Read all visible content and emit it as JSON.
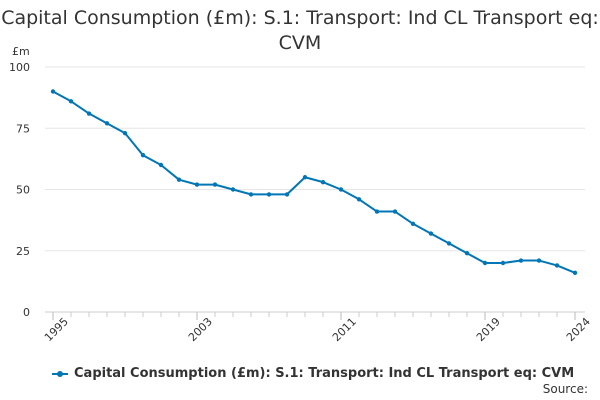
{
  "chart_data": {
    "type": "line",
    "title": "Capital Consumption (£m): S.1: Transport: Ind CL Transport eq: CVM",
    "ylabel": "£m",
    "xlabel": "",
    "ylim": [
      0,
      100
    ],
    "yticks": [
      0,
      25,
      50,
      75,
      100
    ],
    "xlim": [
      1995,
      2024
    ],
    "xticks": [
      1995,
      2003,
      2011,
      2019,
      2024
    ],
    "grid": true,
    "legend_position": "bottom",
    "series": [
      {
        "name": "Capital Consumption (£m): S.1: Transport: Ind CL Transport eq: CVM",
        "color": "#0076b6",
        "x": [
          1995,
          1996,
          1997,
          1998,
          1999,
          2000,
          2001,
          2002,
          2003,
          2004,
          2005,
          2006,
          2007,
          2008,
          2009,
          2010,
          2011,
          2012,
          2013,
          2014,
          2015,
          2016,
          2017,
          2018,
          2019,
          2020,
          2021,
          2022,
          2023,
          2024
        ],
        "values": [
          90,
          86,
          81,
          77,
          73,
          64,
          60,
          54,
          52,
          52,
          50,
          48,
          48,
          48,
          55,
          53,
          50,
          46,
          41,
          41,
          36,
          32,
          28,
          24,
          20,
          20,
          21,
          21,
          19,
          16
        ]
      }
    ]
  },
  "source_label": "Source:"
}
